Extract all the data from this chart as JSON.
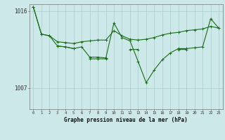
{
  "x": [
    0,
    1,
    2,
    3,
    4,
    5,
    6,
    7,
    8,
    9,
    10,
    11,
    12,
    13,
    14,
    15,
    16,
    17,
    18,
    19,
    20,
    21,
    22,
    23
  ],
  "line1": [
    1016.5,
    1013.3,
    1013.1,
    1012.4,
    1012.3,
    1012.2,
    1012.4,
    1012.5,
    1012.6,
    1012.6,
    1013.7,
    1013.1,
    1012.7,
    1012.6,
    1012.7,
    1012.9,
    1013.2,
    1013.4,
    1013.5,
    1013.7,
    1013.8,
    1013.9,
    1014.2,
    1014.0
  ],
  "line2": [
    1016.5,
    1013.3,
    1013.1,
    1011.9,
    1011.8,
    1011.6,
    1011.8,
    1010.6,
    1010.6,
    1010.5,
    1014.6,
    1012.9,
    1012.5,
    1010.1,
    1007.6,
    1009.1,
    1010.3,
    1011.1,
    1011.6,
    1011.6,
    1011.7,
    1011.8,
    1015.1,
    1014.0
  ],
  "line3": [
    null,
    null,
    null,
    1011.9,
    1011.8,
    1011.6,
    null,
    1010.4,
    1010.4,
    1010.4,
    null,
    null,
    1011.5,
    1011.5,
    null,
    null,
    null,
    null,
    1011.5,
    1011.5,
    null,
    null,
    null,
    null
  ],
  "background_color": "#cce8e8",
  "grid_color": "#aacaca",
  "line_color": "#1a6b1a",
  "xlabel": "Graphe pression niveau de la mer (hPa)",
  "xlim": [
    -0.5,
    23.5
  ],
  "ylim": [
    1004.5,
    1016.8
  ],
  "yticks": [
    1007,
    1016
  ],
  "ytick_labels": [
    "1007",
    "1016"
  ]
}
